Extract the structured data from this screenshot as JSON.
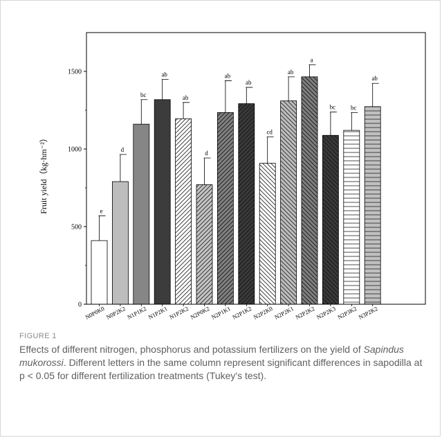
{
  "figure": {
    "label": "FIGURE 1",
    "caption_before": "Effects of different nitrogen, phosphorus and potassium fertilizers on the yield of ",
    "caption_species": "Sapindus mukorossi",
    "caption_after": ". Different letters in the same column represent significant differences in sapodilla at p < 0.05 for different fertilization treatments (Tukey's test)."
  },
  "chart_data": {
    "type": "bar",
    "title": "",
    "xlabel": "",
    "ylabel": "Fruit yield（kg·hm⁻²）",
    "ylim": [
      0,
      1750
    ],
    "yticks": [
      0,
      500,
      1000,
      1500
    ],
    "grid": false,
    "legend": "none",
    "categories": [
      "N0P0K0",
      "N0P2K2",
      "N1P1K2",
      "N1P2K1",
      "N1P2K2",
      "N2P0K2",
      "N2P1K1",
      "N2P1K2",
      "N2P2K0",
      "N2P2K1",
      "N2P2K2",
      "N2P2K3",
      "N2P3K2",
      "N3P2K2"
    ],
    "values": [
      410,
      790,
      1160,
      1318,
      1195,
      770,
      1235,
      1292,
      908,
      1310,
      1465,
      1088,
      1120,
      1273
    ],
    "errors": [
      160,
      175,
      158,
      130,
      105,
      172,
      205,
      105,
      170,
      155,
      78,
      150,
      115,
      150
    ],
    "significance": [
      "e",
      "d",
      "bc",
      "ab",
      "ab",
      "d",
      "ab",
      "ab",
      "cd",
      "ab",
      "a",
      "bc",
      "bc",
      "ab"
    ],
    "styles": [
      {
        "fill": "#ffffff",
        "pattern": "none"
      },
      {
        "fill": "#bdbdbd",
        "pattern": "none"
      },
      {
        "fill": "#868686",
        "pattern": "none"
      },
      {
        "fill": "#3c3c3c",
        "pattern": "none"
      },
      {
        "fill": "#ffffff",
        "pattern": "diag-right"
      },
      {
        "fill": "#c2c2c2",
        "pattern": "diag-right"
      },
      {
        "fill": "#808080",
        "pattern": "diag-right"
      },
      {
        "fill": "#3a3a3a",
        "pattern": "diag-right"
      },
      {
        "fill": "#ffffff",
        "pattern": "diag-left"
      },
      {
        "fill": "#bcbcbc",
        "pattern": "diag-left"
      },
      {
        "fill": "#7e7e7e",
        "pattern": "diag-left"
      },
      {
        "fill": "#3a3a3a",
        "pattern": "diag-left"
      },
      {
        "fill": "#ffffff",
        "pattern": "horizontal"
      },
      {
        "fill": "#c0c0c0",
        "pattern": "horizontal"
      }
    ]
  }
}
